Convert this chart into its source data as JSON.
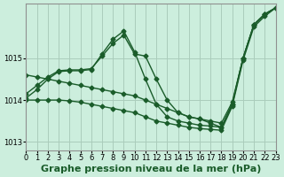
{
  "background_color": "#cceedd",
  "grid_color": "#aaccbb",
  "line_color": "#1a5c2a",
  "title": "Graphe pression niveau de la mer (hPa)",
  "xlim": [
    0,
    23
  ],
  "ylim": [
    1012.8,
    1016.3
  ],
  "yticks": [
    1013,
    1014,
    1015
  ],
  "xticks": [
    0,
    1,
    2,
    3,
    4,
    5,
    6,
    7,
    8,
    9,
    10,
    11,
    12,
    13,
    14,
    15,
    16,
    17,
    18,
    19,
    20,
    21,
    22,
    23
  ],
  "series": [
    {
      "x": [
        0,
        1,
        2,
        3,
        4,
        5,
        6,
        7,
        8,
        9,
        10,
        11,
        12,
        13,
        14,
        15,
        16,
        17,
        18,
        19,
        20,
        21,
        22,
        23
      ],
      "y": [
        1014.15,
        1014.35,
        1014.55,
        1014.7,
        1014.72,
        1014.72,
        1014.75,
        1015.05,
        1015.35,
        1015.55,
        1015.1,
        1015.05,
        1014.5,
        1014.0,
        1013.7,
        1013.6,
        1013.55,
        1013.5,
        1013.45,
        1013.95,
        1015.0,
        1015.8,
        1016.05,
        1016.2
      ]
    },
    {
      "x": [
        0,
        1,
        2,
        3,
        4,
        5,
        6,
        7,
        8,
        9,
        10,
        11,
        12,
        13,
        14,
        15,
        16,
        17,
        18,
        19,
        20,
        21,
        22,
        23
      ],
      "y": [
        1014.05,
        1014.25,
        1014.5,
        1014.68,
        1014.7,
        1014.7,
        1014.73,
        1015.1,
        1015.45,
        1015.65,
        1015.15,
        1014.5,
        1013.9,
        1013.6,
        1013.5,
        1013.45,
        1013.4,
        1013.38,
        1013.35,
        1013.9,
        1015.0,
        1015.8,
        1016.05,
        1016.2
      ]
    },
    {
      "x": [
        0,
        1,
        2,
        3,
        4,
        5,
        6,
        7,
        8,
        9,
        10,
        11,
        12,
        13,
        14,
        15,
        16,
        17,
        18,
        19,
        20,
        21,
        22,
        23
      ],
      "y": [
        1014.6,
        1014.55,
        1014.5,
        1014.45,
        1014.4,
        1014.35,
        1014.3,
        1014.25,
        1014.2,
        1014.15,
        1014.1,
        1014.0,
        1013.9,
        1013.8,
        1013.7,
        1013.6,
        1013.55,
        1013.45,
        1013.35,
        1013.9,
        1015.0,
        1015.8,
        1016.05,
        1016.2
      ]
    },
    {
      "x": [
        0,
        1,
        2,
        3,
        4,
        5,
        6,
        7,
        8,
        9,
        10,
        11,
        12,
        13,
        14,
        15,
        16,
        17,
        18,
        19,
        20,
        21,
        22,
        23
      ],
      "y": [
        1014.0,
        1014.0,
        1014.0,
        1014.0,
        1013.98,
        1013.95,
        1013.9,
        1013.85,
        1013.8,
        1013.75,
        1013.7,
        1013.6,
        1013.5,
        1013.45,
        1013.4,
        1013.35,
        1013.32,
        1013.3,
        1013.28,
        1013.85,
        1014.95,
        1015.75,
        1016.0,
        1016.2
      ]
    }
  ],
  "marker": "D",
  "marker_size": 2.5,
  "line_width": 1.0,
  "title_fontsize": 8,
  "tick_fontsize": 6
}
